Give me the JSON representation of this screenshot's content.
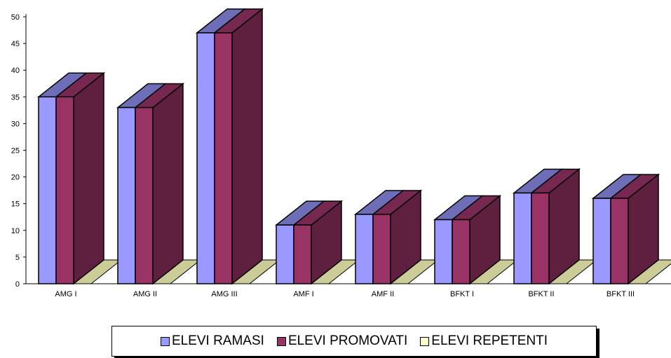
{
  "chart_data": {
    "type": "bar",
    "categories": [
      "AMG I",
      "AMG II",
      "AMG III",
      "AMF I",
      "AMF II",
      "BFKT I",
      "BFKT II",
      "BFKT III"
    ],
    "series": [
      {
        "name": "ELEVI RAMASI",
        "values": [
          35,
          33,
          47,
          11,
          13,
          12,
          17,
          16
        ],
        "color": "#9999ff"
      },
      {
        "name": "ELEVI PROMOVATI",
        "values": [
          35,
          33,
          47,
          11,
          13,
          12,
          17,
          16
        ],
        "color": "#993366"
      },
      {
        "name": "ELEVI REPETENTI",
        "values": [
          0,
          0,
          0,
          0,
          0,
          0,
          0,
          0
        ],
        "color": "#ffffcc"
      }
    ],
    "yticks": [
      "0",
      "5",
      "10",
      "15",
      "20",
      "25",
      "30",
      "35",
      "40",
      "45",
      "50"
    ],
    "ylim": [
      0,
      50
    ],
    "grid": false,
    "legend_position": "bottom",
    "three_d": true
  }
}
